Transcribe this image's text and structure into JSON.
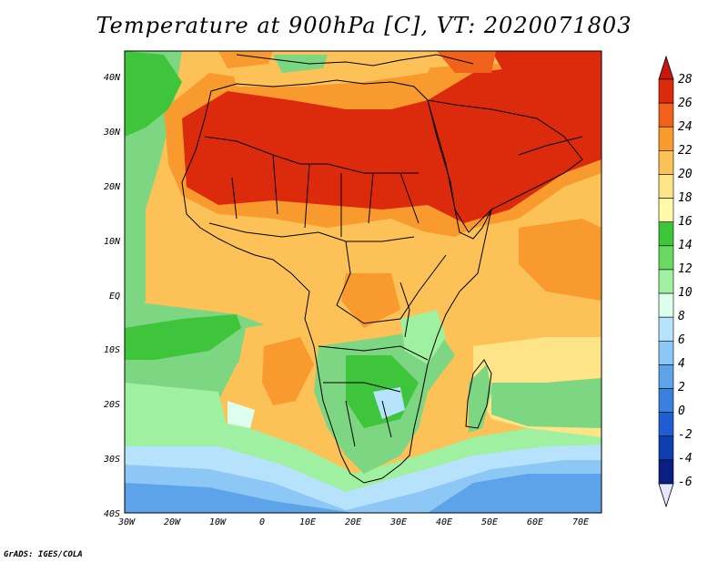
{
  "title": "Temperature at 900hPa [C], VT: 2020071803",
  "credit": "GrADS: IGES/COLA",
  "map": {
    "lat_labels": [
      "40N",
      "30N",
      "20N",
      "10N",
      "EQ",
      "10S",
      "20S",
      "30S",
      "40S"
    ],
    "lon_labels": [
      "30W",
      "20W",
      "10W",
      "0",
      "10E",
      "20E",
      "30E",
      "40E",
      "50E",
      "60E",
      "70E"
    ],
    "extent": {
      "lon": [
        -30,
        75
      ],
      "lat": [
        -40,
        45
      ]
    }
  },
  "colorbar": {
    "labels": [
      "28",
      "26",
      "24",
      "22",
      "20",
      "18",
      "16",
      "14",
      "12",
      "10",
      "8",
      "6",
      "4",
      "2",
      "0",
      "-2",
      "-4",
      "-6"
    ],
    "colors": [
      "#dc2a0c",
      "#f2611c",
      "#f99a2e",
      "#fcc257",
      "#fde487",
      "#fffaa8",
      "#3ec53b",
      "#68d963",
      "#9ff0a0",
      "#ddffee",
      "#b6e2fb",
      "#8cc7f5",
      "#5da3ea",
      "#3a80df",
      "#1f5ed0",
      "#0f3fae",
      "#0b1f82"
    ],
    "top_triangle": "#c8180a",
    "bottom_triangle": "#e6e6fc"
  },
  "palette": {
    "ocean_warm": "#fdd37c",
    "ocean_cool": "#7cd682",
    "southern_ocean": "#5da3ea",
    "land_hot": "#dc2a0c"
  }
}
